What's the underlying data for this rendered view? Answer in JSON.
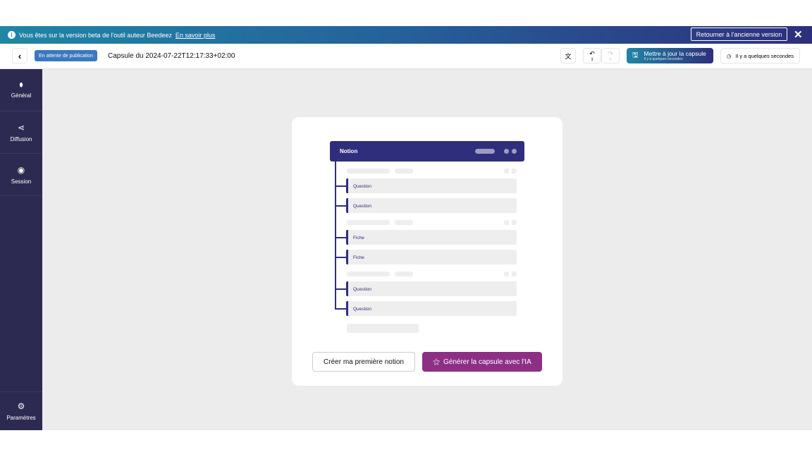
{
  "banner": {
    "message": "Vous êtes sur la version beta de l'outil auteur Beedeez",
    "link": "En savoir plus",
    "old_version": "Retourner à l'ancienne version",
    "close": "✕"
  },
  "header": {
    "status": "En attente de publication",
    "title": "Capsule du 2024-07-22T12:17:33+02:00",
    "undo_count": "3",
    "redo_count": "0",
    "save_label": "Mettre à jour la capsule",
    "save_sub": "Il y a quelques secondes",
    "history": "Il y a quelques secondes"
  },
  "sidebar": {
    "items": [
      {
        "label": "Général",
        "icon": "pill-icon"
      },
      {
        "label": "Diffusion",
        "icon": "share-icon"
      },
      {
        "label": "Session",
        "icon": "record-icon"
      }
    ],
    "settings": "Paramètres"
  },
  "preview": {
    "header": "Notion",
    "rows": [
      "Question",
      "Question",
      "Fiche",
      "Fiche",
      "Question",
      "Question"
    ]
  },
  "actions": {
    "create": "Créer ma première notion",
    "generate": "Générer la capsule avec l'IA"
  },
  "colors": {
    "navy": "#2f2e7c",
    "sidebar": "#2d2a52",
    "purple": "#8e2f86",
    "status": "#3a78bf"
  }
}
